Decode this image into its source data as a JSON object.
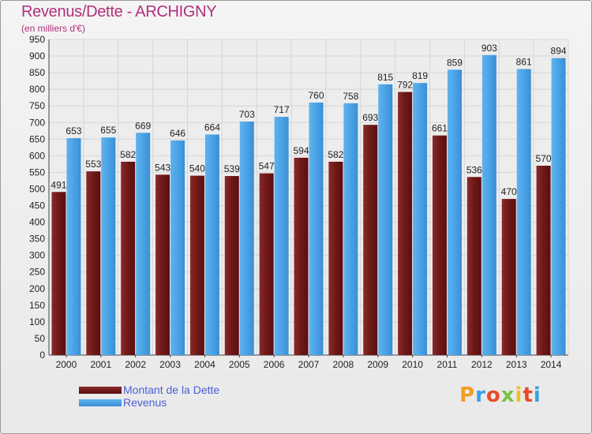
{
  "header": {
    "title": "Revenus/Dette - ARCHIGNY",
    "subtitle": "(en milliers d'€)"
  },
  "legend": {
    "debt_label": "Montant de la Dette",
    "revenue_label": "Revenus"
  },
  "logo": {
    "text": "Proxiti"
  },
  "colors": {
    "debt": "#6e1818",
    "revenue": "#4aa3e6",
    "title": "#b0307a",
    "legend_text": "#4a5fd6"
  },
  "chart_data": {
    "type": "bar",
    "title": "Revenus/Dette - ARCHIGNY",
    "ylabel": "(en milliers d'€)",
    "xlabel": "",
    "ylim": [
      0,
      950
    ],
    "ytick_step": 50,
    "grid": true,
    "legend_position": "bottom-left",
    "categories": [
      "2000",
      "2001",
      "2002",
      "2003",
      "2004",
      "2005",
      "2006",
      "2007",
      "2008",
      "2009",
      "2010",
      "2011",
      "2012",
      "2013",
      "2014"
    ],
    "series": [
      {
        "name": "Montant de la Dette",
        "values": [
          491,
          553,
          582,
          543,
          540,
          539,
          547,
          594,
          582,
          693,
          792,
          661,
          536,
          470,
          570
        ]
      },
      {
        "name": "Revenus",
        "values": [
          653,
          655,
          669,
          646,
          664,
          703,
          717,
          760,
          758,
          815,
          819,
          859,
          903,
          861,
          894
        ]
      }
    ]
  }
}
